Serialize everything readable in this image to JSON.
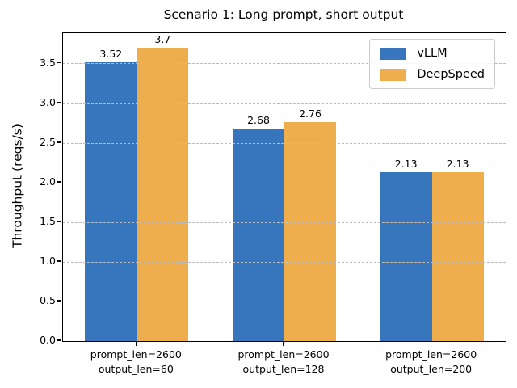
{
  "chart_data": {
    "type": "bar",
    "title": "Scenario 1: Long prompt, short output",
    "ylabel": "Throughput (reqs/s)",
    "xlabel": "",
    "categories": [
      "prompt_len=2600\noutput_len=60",
      "prompt_len=2600\noutput_len=128",
      "prompt_len=2600\noutput_len=200"
    ],
    "series": [
      {
        "name": "vLLM",
        "color": "#3776bd",
        "values": [
          3.52,
          2.68,
          2.13
        ],
        "labels": [
          "3.52",
          "2.68",
          "2.13"
        ]
      },
      {
        "name": "DeepSpeed",
        "color": "#eeae4d",
        "values": [
          3.7,
          2.76,
          2.13
        ],
        "labels": [
          "3.7",
          "2.76",
          "2.13"
        ]
      }
    ],
    "yticks": [
      "0.0",
      "0.5",
      "1.0",
      "1.5",
      "2.0",
      "2.5",
      "3.0",
      "3.5"
    ],
    "ylim": [
      0,
      3.885
    ],
    "grid": "horizontal-dashed-above-bars",
    "legend_position": "upper right",
    "bar_width_fraction": 0.35,
    "colors": {
      "vllm_blue": "#3776bd",
      "deepspeed_orange": "#eeae4d",
      "grid_gray": "#bbbbbb",
      "spine_black": "#000000"
    }
  }
}
